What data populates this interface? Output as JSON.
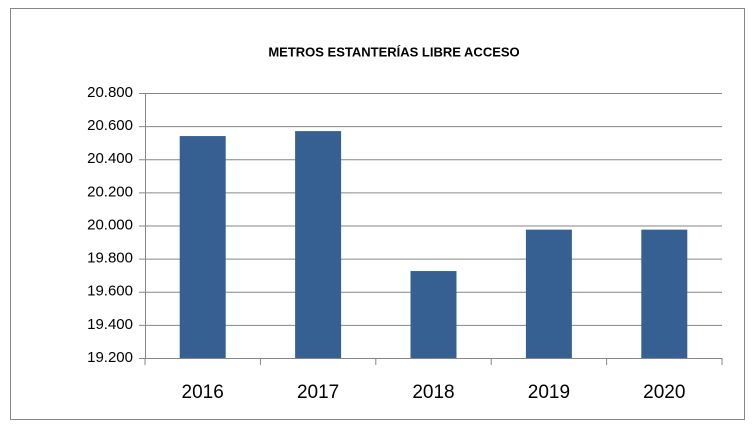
{
  "chart_data": {
    "type": "bar",
    "title": "METROS ESTANTERÍAS LIBRE ACCESO",
    "categories": [
      "2016",
      "2017",
      "2018",
      "2019",
      "2020"
    ],
    "values": [
      20540,
      20570,
      19725,
      19975,
      19975
    ],
    "color": "#366092",
    "ylim": [
      19200,
      20800
    ],
    "yticks": [
      {
        "value": 19200,
        "label": "19.200"
      },
      {
        "value": 19400,
        "label": "19.400"
      },
      {
        "value": 19600,
        "label": "19.600"
      },
      {
        "value": 19800,
        "label": "19.800"
      },
      {
        "value": 20000,
        "label": "20.000"
      },
      {
        "value": 20200,
        "label": "20.200"
      },
      {
        "value": 20400,
        "label": "20.400"
      },
      {
        "value": 20600,
        "label": "20.600"
      },
      {
        "value": 20800,
        "label": "20.800"
      }
    ],
    "grid": true
  }
}
